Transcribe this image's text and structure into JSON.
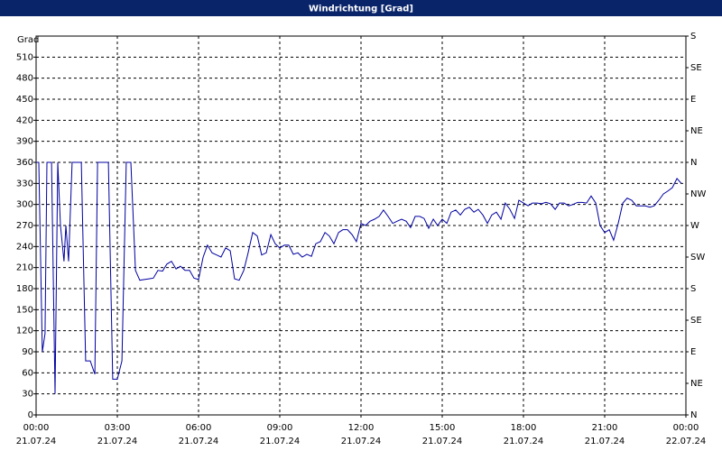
{
  "chart_data": {
    "type": "line",
    "title": "Windrichtung [Grad]",
    "ylabel": "Grad",
    "ylim": [
      0,
      540
    ],
    "yticks": [
      0,
      30,
      60,
      90,
      120,
      150,
      180,
      210,
      240,
      270,
      300,
      330,
      360,
      390,
      420,
      450,
      480,
      510
    ],
    "y2lim": [
      0,
      540
    ],
    "y2ticks": [
      {
        "value": 0,
        "label": "N"
      },
      {
        "value": 45,
        "label": "NE"
      },
      {
        "value": 90,
        "label": "E"
      },
      {
        "value": 135,
        "label": "SE"
      },
      {
        "value": 180,
        "label": "S"
      },
      {
        "value": 225,
        "label": "SW"
      },
      {
        "value": 270,
        "label": "W"
      },
      {
        "value": 315,
        "label": "NW"
      },
      {
        "value": 360,
        "label": "N"
      },
      {
        "value": 405,
        "label": "NE"
      },
      {
        "value": 450,
        "label": "E"
      },
      {
        "value": 495,
        "label": "SE"
      },
      {
        "value": 540,
        "label": "S"
      }
    ],
    "xlim": [
      0,
      24
    ],
    "xticks": [
      {
        "value": 0,
        "label": "00:00",
        "date": "21.07.24"
      },
      {
        "value": 3,
        "label": "03:00",
        "date": "21.07.24"
      },
      {
        "value": 6,
        "label": "06:00",
        "date": "21.07.24"
      },
      {
        "value": 9,
        "label": "09:00",
        "date": "21.07.24"
      },
      {
        "value": 12,
        "label": "12:00",
        "date": "21.07.24"
      },
      {
        "value": 15,
        "label": "15:00",
        "date": "21.07.24"
      },
      {
        "value": 18,
        "label": "18:00",
        "date": "21.07.24"
      },
      {
        "value": 21,
        "label": "21:00",
        "date": "21.07.24"
      },
      {
        "value": 24,
        "label": "00:00",
        "date": "22.07.24"
      }
    ],
    "grid": true,
    "series": [
      {
        "color": "#0000a0",
        "x": [
          0,
          0.1,
          0.23,
          0.33,
          0.4,
          0.57,
          0.7,
          0.8,
          0.9,
          1.03,
          1.1,
          1.2,
          1.33,
          1.67,
          1.83,
          2,
          2.17,
          2.27,
          2.67,
          2.83,
          3,
          3.17,
          3.33,
          3.5,
          3.67,
          3.83,
          4,
          4.17,
          4.33,
          4.5,
          4.67,
          4.83,
          5,
          5.17,
          5.33,
          5.5,
          5.67,
          5.83,
          6,
          6.17,
          6.33,
          6.5,
          6.67,
          6.83,
          7,
          7.17,
          7.33,
          7.5,
          7.67,
          7.83,
          8,
          8.17,
          8.33,
          8.5,
          8.67,
          8.83,
          9,
          9.17,
          9.33,
          9.5,
          9.67,
          9.83,
          10,
          10.17,
          10.33,
          10.5,
          10.67,
          10.83,
          11,
          11.17,
          11.33,
          11.5,
          11.67,
          11.83,
          12,
          12.17,
          12.33,
          12.5,
          12.67,
          12.83,
          13,
          13.17,
          13.33,
          13.5,
          13.67,
          13.83,
          14,
          14.17,
          14.33,
          14.5,
          14.67,
          14.83,
          15,
          15.17,
          15.33,
          15.5,
          15.67,
          15.83,
          16,
          16.17,
          16.33,
          16.5,
          16.67,
          16.83,
          17,
          17.17,
          17.33,
          17.5,
          17.67,
          17.83,
          18,
          18.17,
          18.33,
          18.5,
          18.67,
          18.83,
          19,
          19.17,
          19.33,
          19.5,
          19.67,
          19.83,
          20,
          20.17,
          20.33,
          20.5,
          20.67,
          20.83,
          21,
          21.17,
          21.33,
          21.5,
          21.67,
          21.83,
          22,
          22.17,
          22.33,
          22.5,
          22.67,
          22.83,
          23,
          23.17,
          23.33,
          23.5,
          23.67,
          23.83
        ],
        "values": [
          360,
          360,
          90,
          116,
          360,
          360,
          30,
          360,
          270,
          219,
          270,
          219,
          360,
          360,
          77,
          77,
          58,
          360,
          360,
          51,
          51,
          77,
          360,
          360,
          206,
          192,
          193,
          194,
          195,
          206,
          205,
          215,
          219,
          208,
          212,
          206,
          206,
          195,
          193,
          225,
          242,
          231,
          228,
          225,
          238,
          234,
          194,
          192,
          206,
          231,
          260,
          255,
          228,
          231,
          257,
          244,
          238,
          242,
          242,
          229,
          231,
          225,
          229,
          226,
          244,
          247,
          260,
          255,
          244,
          260,
          264,
          264,
          257,
          247,
          273,
          270,
          276,
          279,
          283,
          292,
          283,
          273,
          276,
          279,
          276,
          267,
          283,
          283,
          280,
          266,
          279,
          270,
          279,
          273,
          289,
          292,
          285,
          293,
          296,
          289,
          293,
          285,
          273,
          285,
          289,
          279,
          302,
          293,
          280,
          306,
          302,
          298,
          302,
          302,
          301,
          303,
          301,
          293,
          302,
          302,
          298,
          300,
          303,
          303,
          302,
          312,
          302,
          270,
          260,
          264,
          249,
          273,
          302,
          309,
          306,
          298,
          298,
          298,
          296,
          298,
          306,
          315,
          319,
          324,
          337,
          330
        ]
      }
    ]
  }
}
